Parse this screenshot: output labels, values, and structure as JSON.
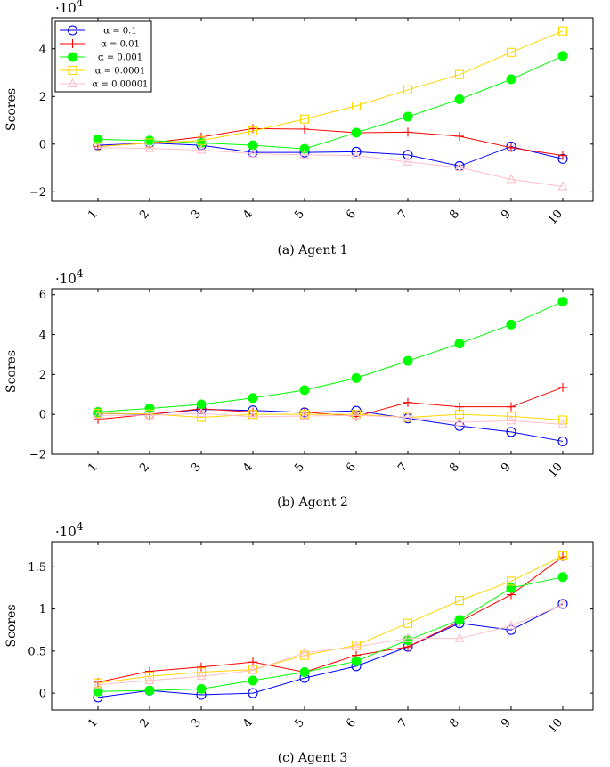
{
  "legend_prefix": "α = ",
  "chart_data": [
    {
      "type": "line",
      "title": "(a) Agent 1",
      "ylabel": "Scores",
      "multiplier": "·10",
      "multiplier_exp": "4",
      "categories": [
        "1",
        "2",
        "3",
        "4",
        "5",
        "6",
        "7",
        "8",
        "9",
        "10"
      ],
      "ylim": [
        -2.4,
        5.3
      ],
      "yticks": [
        -2,
        0,
        2,
        4
      ],
      "ytick_labels": [
        "−2",
        "0",
        "2",
        "4"
      ],
      "legend": {
        "position": "top-left"
      },
      "series": [
        {
          "name": "0.1",
          "color": "#0000ff",
          "marker": "circle",
          "values": [
            -0.05,
            0.05,
            -0.05,
            -0.35,
            -0.35,
            -0.32,
            -0.45,
            -0.92,
            -0.1,
            -0.62
          ]
        },
        {
          "name": "0.01",
          "color": "#ff0000",
          "marker": "plus",
          "values": [
            -0.1,
            0.05,
            0.3,
            0.65,
            0.63,
            0.48,
            0.5,
            0.33,
            -0.15,
            -0.48
          ]
        },
        {
          "name": "0.001",
          "color": "#00ff00",
          "marker": "filled-circle",
          "values": [
            0.2,
            0.15,
            0.05,
            -0.05,
            -0.2,
            0.48,
            1.15,
            1.88,
            2.72,
            3.7
          ]
        },
        {
          "name": "0.0001",
          "color": "#ffd700",
          "marker": "square",
          "values": [
            -0.1,
            0.05,
            0.15,
            0.55,
            1.05,
            1.6,
            2.28,
            2.92,
            3.85,
            4.75
          ]
        },
        {
          "name": "0.00001",
          "color": "#ffc0cb",
          "marker": "triangle",
          "values": [
            -0.15,
            -0.18,
            -0.25,
            -0.4,
            -0.45,
            -0.48,
            -0.75,
            -0.98,
            -1.48,
            -1.78
          ]
        }
      ]
    },
    {
      "type": "line",
      "title": "(b) Agent 2",
      "ylabel": "Scores",
      "multiplier": "·10",
      "multiplier_exp": "4",
      "categories": [
        "1",
        "2",
        "3",
        "4",
        "5",
        "6",
        "7",
        "8",
        "9",
        "10"
      ],
      "ylim": [
        -2.0,
        6.3
      ],
      "yticks": [
        -2,
        0,
        2,
        4,
        6
      ],
      "ytick_labels": [
        "−2",
        "0",
        "2",
        "4",
        "6"
      ],
      "series": [
        {
          "name": "0.1",
          "color": "#0000ff",
          "marker": "circle",
          "values": [
            0.05,
            0.0,
            0.25,
            0.2,
            0.1,
            0.18,
            -0.2,
            -0.58,
            -0.88,
            -1.35
          ]
        },
        {
          "name": "0.01",
          "color": "#ff0000",
          "marker": "plus",
          "values": [
            -0.25,
            0.0,
            0.28,
            0.12,
            0.12,
            -0.1,
            0.6,
            0.38,
            0.38,
            1.35
          ]
        },
        {
          "name": "0.001",
          "color": "#00ff00",
          "marker": "filled-circle",
          "values": [
            0.12,
            0.3,
            0.5,
            0.82,
            1.22,
            1.82,
            2.68,
            3.55,
            4.5,
            5.65
          ]
        },
        {
          "name": "0.0001",
          "color": "#ffd700",
          "marker": "square",
          "values": [
            0.05,
            0.02,
            -0.15,
            0.0,
            0.0,
            0.0,
            -0.15,
            0.0,
            -0.1,
            -0.28
          ]
        },
        {
          "name": "0.00001",
          "color": "#ffc0cb",
          "marker": "triangle",
          "values": [
            -0.05,
            -0.05,
            0.05,
            -0.12,
            -0.08,
            -0.05,
            -0.15,
            -0.4,
            -0.32,
            -0.5
          ]
        }
      ]
    },
    {
      "type": "line",
      "title": "(c) Agent 3",
      "ylabel": "Scores",
      "multiplier": "·10",
      "multiplier_exp": "4",
      "categories": [
        "1",
        "2",
        "3",
        "4",
        "5",
        "6",
        "7",
        "8",
        "9",
        "10"
      ],
      "ylim": [
        -0.2,
        1.8
      ],
      "yticks": [
        0,
        0.5,
        1,
        1.5
      ],
      "ytick_labels": [
        "0",
        "0.5",
        "1",
        "1.5"
      ],
      "series": [
        {
          "name": "0.1",
          "color": "#0000ff",
          "marker": "circle",
          "values": [
            -0.05,
            0.03,
            -0.02,
            0.0,
            0.18,
            0.32,
            0.55,
            0.83,
            0.75,
            1.06
          ]
        },
        {
          "name": "0.01",
          "color": "#ff0000",
          "marker": "plus",
          "values": [
            0.13,
            0.26,
            0.31,
            0.37,
            0.25,
            0.45,
            0.55,
            0.85,
            1.17,
            1.62
          ]
        },
        {
          "name": "0.001",
          "color": "#00ff00",
          "marker": "filled-circle",
          "values": [
            0.02,
            0.03,
            0.05,
            0.15,
            0.25,
            0.38,
            0.63,
            0.87,
            1.25,
            1.38
          ]
        },
        {
          "name": "0.0001",
          "color": "#ffd700",
          "marker": "square",
          "values": [
            0.12,
            0.2,
            0.25,
            0.28,
            0.45,
            0.57,
            0.83,
            1.1,
            1.33,
            1.63
          ]
        },
        {
          "name": "0.00001",
          "color": "#ffc0cb",
          "marker": "triangle",
          "values": [
            0.1,
            0.15,
            0.2,
            0.27,
            0.48,
            0.55,
            0.65,
            0.65,
            0.8,
            1.05
          ]
        }
      ]
    }
  ]
}
